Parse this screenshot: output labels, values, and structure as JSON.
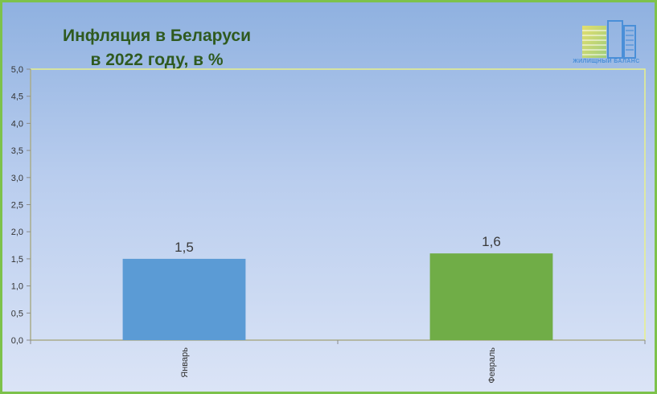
{
  "chart_data": {
    "type": "bar",
    "title": "Инфляция в Беларуси в 2022 году, в %",
    "title_lines": [
      "Инфляция в Беларуси",
      "в 2022 году, в %"
    ],
    "categories": [
      "Январь",
      "Февраль"
    ],
    "values": [
      1.5,
      1.6
    ],
    "data_labels": [
      "1,5",
      "1,6"
    ],
    "bar_colors": [
      "#5b9bd5",
      "#70ad47"
    ],
    "ylim": [
      0,
      5
    ],
    "ytick_labels": [
      "0,0",
      "0,5",
      "1,0",
      "1,5",
      "2,0",
      "2,5",
      "3,0",
      "3,5",
      "4,0",
      "4,5",
      "5,0"
    ],
    "grid": false,
    "legend": "none"
  },
  "logo": {
    "text": "ЖИЛИЩНЫЙ БАЛАНС"
  },
  "colors": {
    "frame_border": "#7dc24b",
    "plot_border": "#e8f08a",
    "title": "#2f5a1f"
  }
}
